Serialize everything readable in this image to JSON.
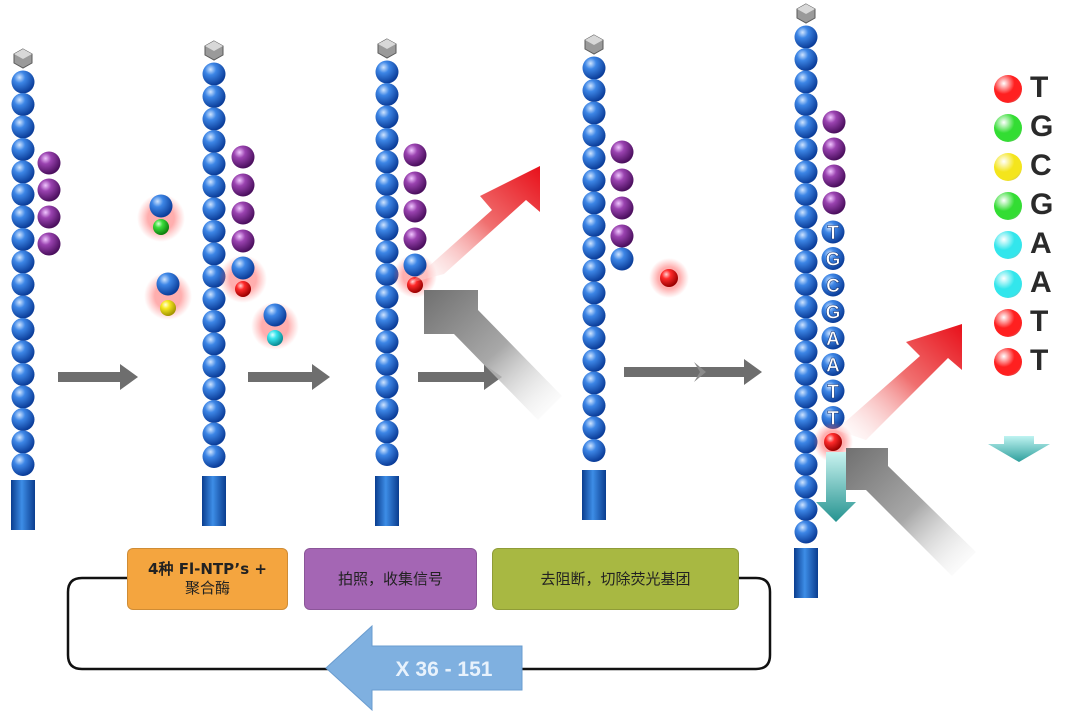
{
  "steps": {
    "step1": {
      "line1": "4种 Fl-NTP’s +",
      "line2": "聚合酶"
    },
    "step2": "拍照，收集信号",
    "step3": "去阻断，切除荧光基团"
  },
  "cycle_label": "X 36 - 151",
  "read_letters": [
    "T",
    "G",
    "C",
    "G",
    "A",
    "A",
    "T",
    "T"
  ],
  "legend": [
    {
      "base": "T",
      "color": "#ff2020"
    },
    {
      "base": "G",
      "color": "#33dd33"
    },
    {
      "base": "C",
      "color": "#f4e51c"
    },
    {
      "base": "G",
      "color": "#33dd33"
    },
    {
      "base": "A",
      "color": "#33e6ec"
    },
    {
      "base": "A",
      "color": "#33e6ec"
    },
    {
      "base": "T",
      "color": "#ff2020"
    },
    {
      "base": "T",
      "color": "#ff2020"
    }
  ],
  "colors": {
    "strand": "#1e5fc4",
    "primer": "#7e2a93",
    "arrow_gray": "#6e6e6e",
    "arrow_red": "#e8201c",
    "cycle_arrow": "#7fb0e0",
    "legend_arrow": "#3aa7a4"
  }
}
